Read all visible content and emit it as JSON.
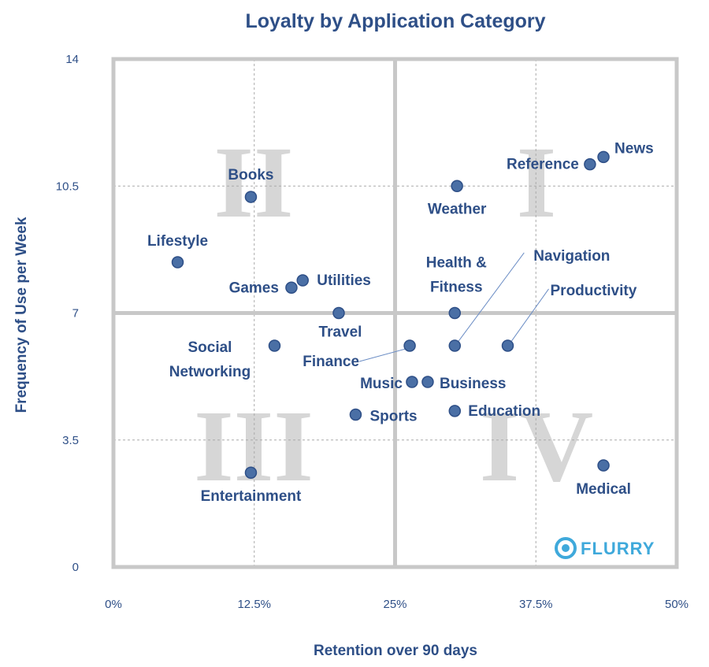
{
  "chart_data": {
    "type": "scatter",
    "title": "Loyalty by Application Category",
    "xlabel": "Retention over 90 days",
    "ylabel": "Frequency of Use per Week",
    "xlim": [
      0,
      50
    ],
    "ylim": [
      0,
      14
    ],
    "x_ticks": [
      {
        "value": 0,
        "label": "0%"
      },
      {
        "value": 12.5,
        "label": "12.5%"
      },
      {
        "value": 25,
        "label": "25%"
      },
      {
        "value": 37.5,
        "label": "37.5%"
      },
      {
        "value": 50,
        "label": "50%"
      }
    ],
    "y_ticks": [
      {
        "value": 0,
        "label": "0"
      },
      {
        "value": 3.5,
        "label": "3.5"
      },
      {
        "value": 7,
        "label": "7"
      },
      {
        "value": 10.5,
        "label": "10.5"
      },
      {
        "value": 14,
        "label": "14"
      }
    ],
    "quadrant_split": {
      "x": 25,
      "y": 7
    },
    "quadrant_labels": [
      "I",
      "II",
      "III",
      "IV"
    ],
    "grid": true,
    "points": [
      {
        "label": "News",
        "x": 43.5,
        "y": 11.3
      },
      {
        "label": "Reference",
        "x": 42.3,
        "y": 11.1
      },
      {
        "label": "Weather",
        "x": 30.5,
        "y": 10.5
      },
      {
        "label": "Books",
        "x": 12.2,
        "y": 10.2
      },
      {
        "label": "Lifestyle",
        "x": 5.7,
        "y": 8.4
      },
      {
        "label": "Utilities",
        "x": 16.8,
        "y": 7.9
      },
      {
        "label": "Games",
        "x": 15.8,
        "y": 7.7
      },
      {
        "label": "Travel",
        "x": 20.0,
        "y": 7.0
      },
      {
        "label": "Health & Fitness",
        "x": 30.3,
        "y": 7.0
      },
      {
        "label": "Navigation",
        "x": 30.3,
        "y": 6.1
      },
      {
        "label": "Productivity",
        "x": 35.0,
        "y": 6.1
      },
      {
        "label": "Finance",
        "x": 26.3,
        "y": 6.1
      },
      {
        "label": "Social Networking",
        "x": 14.3,
        "y": 6.1
      },
      {
        "label": "Music",
        "x": 26.5,
        "y": 5.1
      },
      {
        "label": "Business",
        "x": 27.9,
        "y": 5.1
      },
      {
        "label": "Sports",
        "x": 21.5,
        "y": 4.2
      },
      {
        "label": "Education",
        "x": 30.3,
        "y": 4.3
      },
      {
        "label": "Medical",
        "x": 43.5,
        "y": 2.8
      },
      {
        "label": "Entertainment",
        "x": 12.2,
        "y": 2.6
      }
    ]
  },
  "logo": {
    "text": "FLURRY",
    "color": "#3FA9DB"
  },
  "colors": {
    "text": "#2E4F87",
    "marker": "#4A6FA5",
    "frame": "#C8C8C8",
    "quadrant_numeral": "#D6D6D6"
  }
}
